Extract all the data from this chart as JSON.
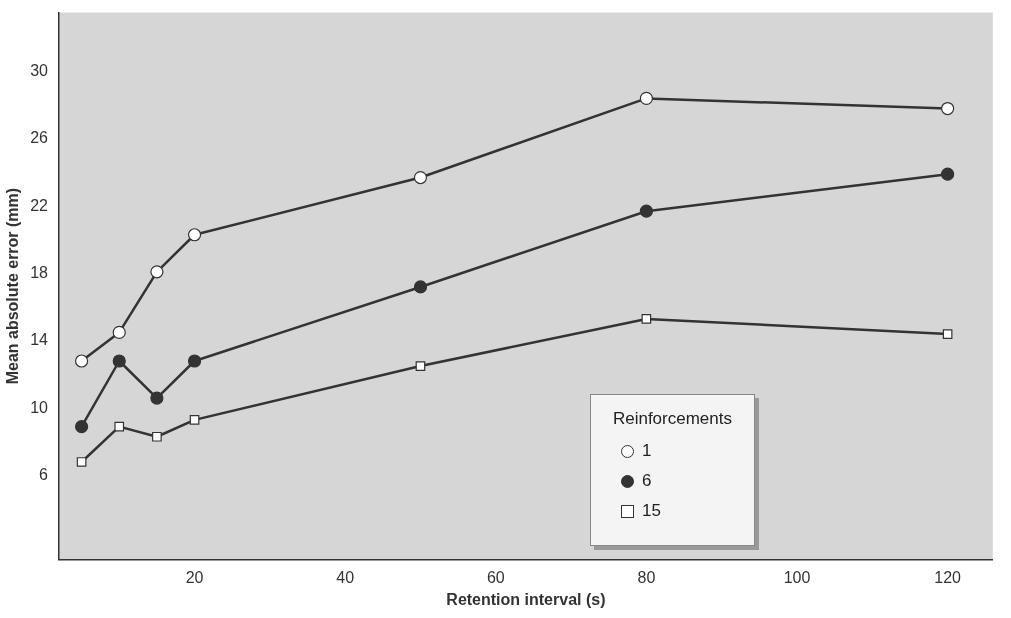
{
  "chart_data": {
    "type": "line",
    "xlabel": "Retention interval (s)",
    "ylabel": "Mean absolute error (mm)",
    "legend_title": "Reinforcements",
    "x": [
      5,
      10,
      15,
      20,
      50,
      80,
      120
    ],
    "series": [
      {
        "name": "1",
        "color": "#ffffff",
        "marker": "circle",
        "values": [
          12.8,
          14.5,
          18.1,
          20.3,
          23.7,
          28.4,
          27.8
        ]
      },
      {
        "name": "6",
        "color": "#333333",
        "marker": "circle",
        "values": [
          8.9,
          12.8,
          10.6,
          12.8,
          17.2,
          21.7,
          23.9
        ]
      },
      {
        "name": "15",
        "color": "#ffffff",
        "marker": "square",
        "values": [
          6.8,
          8.9,
          8.3,
          9.3,
          12.5,
          15.3,
          14.4
        ]
      }
    ],
    "xlim": [
      2,
      126
    ],
    "xticks": [
      20,
      40,
      60,
      80,
      100,
      120
    ],
    "ylim": [
      1,
      33.5
    ],
    "yticks": [
      6,
      10,
      14,
      18,
      22,
      26,
      30
    ],
    "grid": false,
    "legend": "bottom right",
    "line_style": "solid"
  }
}
